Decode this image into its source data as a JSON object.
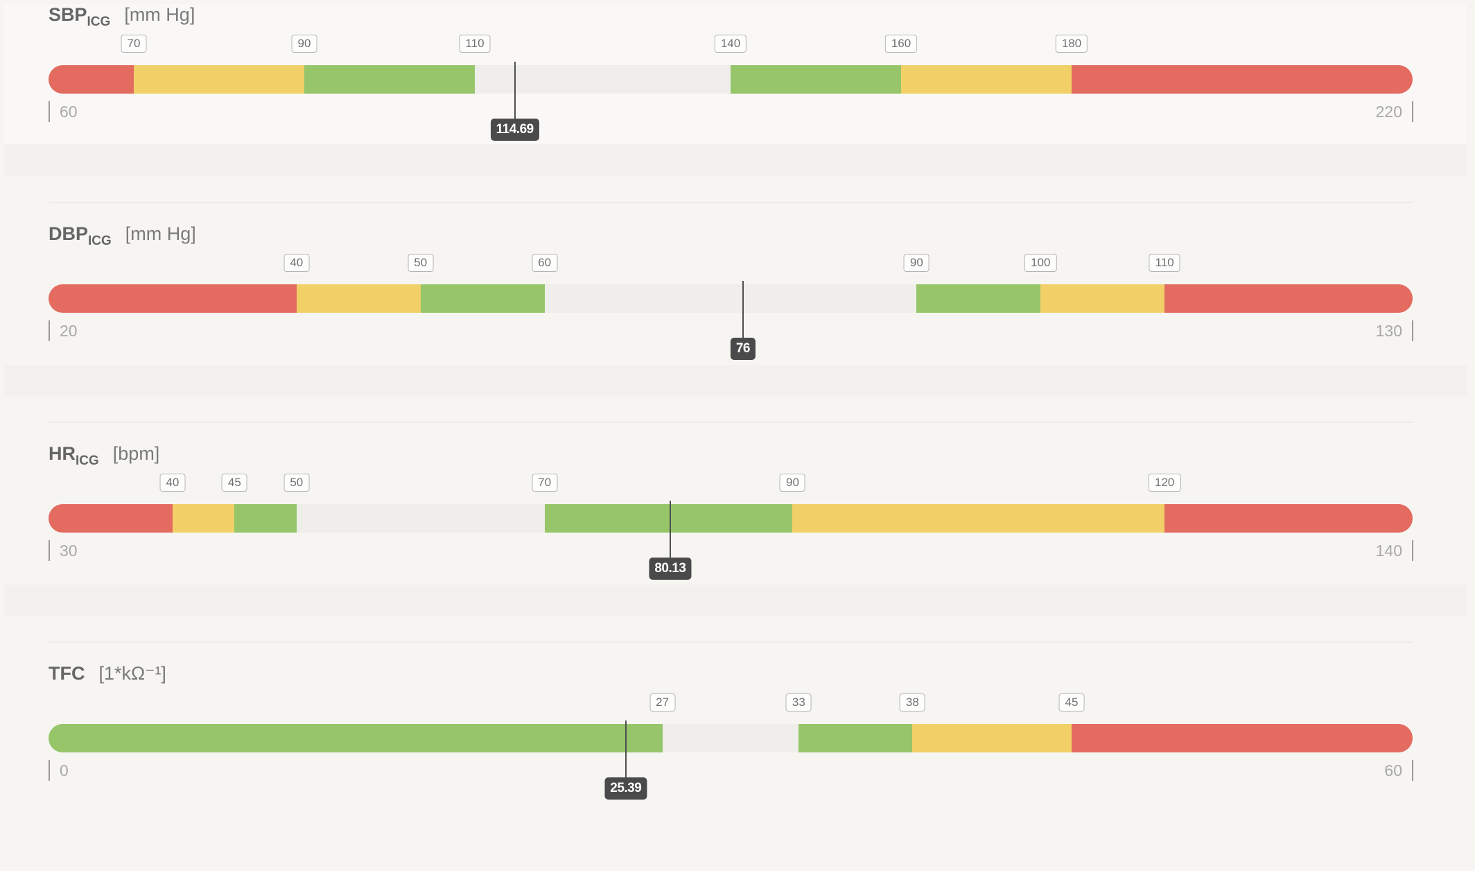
{
  "colors": {
    "red": "#e36b60",
    "yellow": "#f2d068",
    "green": "#96c56a",
    "neutral": "#efeeeb"
  },
  "gauges": [
    {
      "name": "SBP",
      "subscript": "ICG",
      "unit": "[mm Hg]",
      "min": 60,
      "max": 220,
      "min_label": "60",
      "max_label": "220",
      "thresholds": [
        70,
        90,
        110,
        140,
        160,
        180
      ],
      "threshold_labels": [
        "70",
        "90",
        "110",
        "140",
        "160",
        "180"
      ],
      "zones": [
        "red",
        "yellow",
        "green",
        "neutral",
        "green",
        "yellow",
        "red"
      ],
      "value": 114.69,
      "value_label": "114.69"
    },
    {
      "name": "DBP",
      "subscript": "ICG",
      "unit": "[mm Hg]",
      "min": 20,
      "max": 130,
      "min_label": "20",
      "max_label": "130",
      "thresholds": [
        40,
        50,
        60,
        90,
        100,
        110
      ],
      "threshold_labels": [
        "40",
        "50",
        "60",
        "90",
        "100",
        "110"
      ],
      "zones": [
        "red",
        "yellow",
        "green",
        "neutral",
        "green",
        "yellow",
        "red"
      ],
      "value": 76,
      "value_label": "76"
    },
    {
      "name": "HR",
      "subscript": "ICG",
      "unit": "[bpm]",
      "min": 30,
      "max": 140,
      "min_label": "30",
      "max_label": "140",
      "thresholds": [
        40,
        45,
        50,
        70,
        90,
        120
      ],
      "threshold_labels": [
        "40",
        "45",
        "50",
        "70",
        "90",
        "120"
      ],
      "zones": [
        "red",
        "yellow",
        "green",
        "neutral",
        "green",
        "yellow",
        "red"
      ],
      "value": 80.13,
      "value_label": "80.13"
    },
    {
      "name": "TFC",
      "subscript": "",
      "unit": "[1*kΩ⁻¹]",
      "min": 0,
      "max": 60,
      "min_label": "0",
      "max_label": "60",
      "thresholds": [
        27,
        33,
        38,
        45
      ],
      "threshold_labels": [
        "27",
        "33",
        "38",
        "45"
      ],
      "zones": [
        "green",
        "neutral",
        "green",
        "yellow",
        "red"
      ],
      "value": 25.39,
      "value_label": "25.39"
    }
  ]
}
